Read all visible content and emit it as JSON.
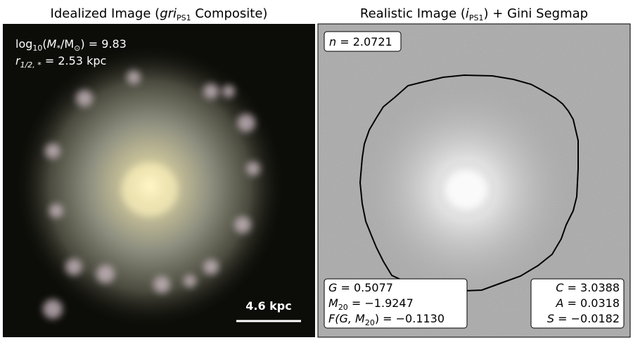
{
  "left_panel": {
    "title": [
      "Idealized Image (",
      "gri",
      "PS1",
      " Composite)"
    ],
    "mass_label": [
      "log",
      "10",
      "(",
      "M",
      "*",
      "/M",
      "⊙",
      ") = 9.83"
    ],
    "radius_label": [
      "r",
      "1/2, *",
      " = 2.53 kpc"
    ],
    "scale_bar_label": "4.6 kpc"
  },
  "right_panel": {
    "title": [
      "Realistic Image (",
      "i",
      "PS1",
      ") + Gini Segmap"
    ],
    "sersic_box": [
      "n",
      " = 2.0721"
    ],
    "gini_box": [
      [
        "G",
        " = 0.5077"
      ],
      [
        "M",
        "20",
        " = −1.9247"
      ],
      [
        "F(G, M",
        "20",
        ") = −0.1130"
      ]
    ],
    "cas_box": [
      [
        "C",
        " = 3.0388"
      ],
      [
        "A",
        " = 0.0318"
      ],
      [
        "S",
        " = −0.0182"
      ]
    ]
  }
}
